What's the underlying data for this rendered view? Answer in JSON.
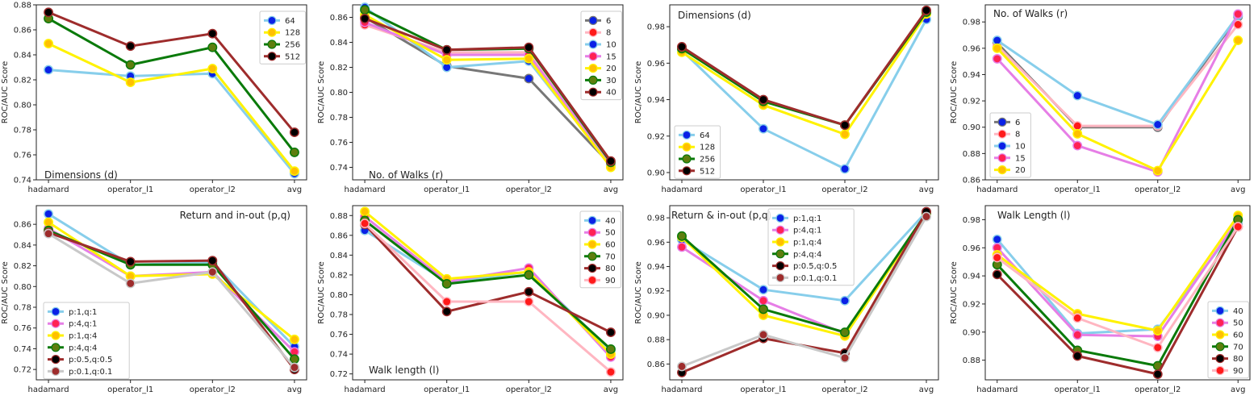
{
  "colors": {
    "blue_marker": "#0a21e6",
    "skyblue_line": "#87ceeb",
    "yellow_line": "#fff200",
    "gold_marker": "#ffc000",
    "green_line": "#0a7a0a",
    "olive_marker": "#5e7e0e",
    "brown_line": "#9e2c2c",
    "black_marker": "#000000",
    "gray_line": "#777777",
    "pink_line": "#ffb6c1",
    "red_marker": "#ff1a1a",
    "violet_line": "#e67ee6",
    "hotpink_marker": "#ff2255",
    "silver_line": "#c8c8c8"
  },
  "chart_data": [
    {
      "type": "line",
      "annotation": "Dimensions (d)",
      "ylabel": "ROC/AUC Score",
      "categories": [
        "hadamard",
        "operator_l1",
        "operator_l2",
        "avg"
      ],
      "ylim": [
        0.74,
        0.88
      ],
      "yticks": [
        "0.74",
        "0.76",
        "0.78",
        "0.80",
        "0.82",
        "0.84",
        "0.86",
        "0.88"
      ],
      "legend_position": "upper right",
      "series": [
        {
          "name": "64",
          "values": [
            0.828,
            0.823,
            0.825,
            0.745
          ],
          "line": "#87ceeb",
          "marker": "#0a21e6"
        },
        {
          "name": "128",
          "values": [
            0.849,
            0.818,
            0.829,
            0.747
          ],
          "line": "#fff200",
          "marker": "#ffc000"
        },
        {
          "name": "256",
          "values": [
            0.869,
            0.832,
            0.846,
            0.762
          ],
          "line": "#0a7a0a",
          "marker": "#5e7e0e"
        },
        {
          "name": "512",
          "values": [
            0.874,
            0.847,
            0.857,
            0.778
          ],
          "line": "#9e2c2c",
          "marker": "#000000"
        }
      ]
    },
    {
      "type": "line",
      "annotation": "No. of Walks (r)",
      "ylabel": "ROC/AUC Score",
      "categories": [
        "hadamard",
        "operator_l1",
        "operator_l2",
        "avg"
      ],
      "ylim": [
        0.73,
        0.87
      ],
      "yticks": [
        "0.74",
        "0.76",
        "0.78",
        "0.80",
        "0.82",
        "0.84",
        "0.86"
      ],
      "legend_position": "upper right",
      "series": [
        {
          "name": "6",
          "values": [
            0.86,
            0.821,
            0.811,
            0.742
          ],
          "line": "#777777",
          "marker": "#0a21e6"
        },
        {
          "name": "8",
          "values": [
            0.854,
            0.832,
            0.832,
            0.742
          ],
          "line": "#ffb6c1",
          "marker": "#ff1a1a"
        },
        {
          "name": "10",
          "values": [
            0.868,
            0.82,
            0.825,
            0.742
          ],
          "line": "#87ceeb",
          "marker": "#0a21e6"
        },
        {
          "name": "15",
          "values": [
            0.856,
            0.83,
            0.83,
            0.742
          ],
          "line": "#e67ee6",
          "marker": "#ff2255"
        },
        {
          "name": "20",
          "values": [
            0.862,
            0.826,
            0.827,
            0.74
          ],
          "line": "#fff200",
          "marker": "#ffc000"
        },
        {
          "name": "30",
          "values": [
            0.866,
            0.834,
            0.835,
            0.744
          ],
          "line": "#0a7a0a",
          "marker": "#5e7e0e"
        },
        {
          "name": "40",
          "values": [
            0.859,
            0.834,
            0.836,
            0.745
          ],
          "line": "#9e2c2c",
          "marker": "#000000"
        }
      ]
    },
    {
      "type": "line",
      "annotation": "Dimensions (d)",
      "ylabel": "ROC/AUC Score",
      "categories": [
        "hadamard",
        "operator_l1",
        "operator_l2",
        "avg"
      ],
      "ylim": [
        0.896,
        0.992
      ],
      "yticks": [
        "0.90",
        "0.92",
        "0.94",
        "0.96",
        "0.98"
      ],
      "legend_position": "lower left",
      "series": [
        {
          "name": "64",
          "values": [
            0.967,
            0.924,
            0.902,
            0.984
          ],
          "line": "#87ceeb",
          "marker": "#0a21e6"
        },
        {
          "name": "128",
          "values": [
            0.966,
            0.937,
            0.921,
            0.987
          ],
          "line": "#fff200",
          "marker": "#ffc000"
        },
        {
          "name": "256",
          "values": [
            0.968,
            0.939,
            0.926,
            0.988
          ],
          "line": "#0a7a0a",
          "marker": "#5e7e0e"
        },
        {
          "name": "512",
          "values": [
            0.969,
            0.94,
            0.926,
            0.989
          ],
          "line": "#9e2c2c",
          "marker": "#000000"
        }
      ]
    },
    {
      "type": "line",
      "annotation": "No. of Walks (r)",
      "ylabel": "ROC/AUC Score",
      "categories": [
        "hadamard",
        "operator_l1",
        "operator_l2",
        "avg"
      ],
      "ylim": [
        0.86,
        0.993
      ],
      "yticks": [
        "0.86",
        "0.88",
        "0.90",
        "0.92",
        "0.94",
        "0.96",
        "0.98"
      ],
      "legend_position": "center left",
      "series": [
        {
          "name": "6",
          "values": [
            0.964,
            0.9,
            0.9,
            0.984
          ],
          "line": "#777777",
          "marker": "#0a21e6"
        },
        {
          "name": "8",
          "values": [
            0.962,
            0.901,
            0.901,
            0.978
          ],
          "line": "#ffb6c1",
          "marker": "#ff1a1a"
        },
        {
          "name": "10",
          "values": [
            0.966,
            0.924,
            0.902,
            0.985
          ],
          "line": "#87ceeb",
          "marker": "#0a21e6"
        },
        {
          "name": "15",
          "values": [
            0.952,
            0.886,
            0.866,
            0.986
          ],
          "line": "#e67ee6",
          "marker": "#ff2255"
        },
        {
          "name": "20",
          "values": [
            0.96,
            0.895,
            0.867,
            0.966
          ],
          "line": "#fff200",
          "marker": "#ffc000"
        }
      ]
    },
    {
      "type": "line",
      "annotation": "Return and in-out (p,q)",
      "ylabel": "ROC/AUC Score",
      "categories": [
        "hadamard",
        "operator_l1",
        "operator_l2",
        "avg"
      ],
      "ylim": [
        0.71,
        0.878
      ],
      "yticks": [
        "0.72",
        "0.74",
        "0.76",
        "0.78",
        "0.80",
        "0.82",
        "0.84",
        "0.86"
      ],
      "legend_position": "lower left",
      "series": [
        {
          "name": "p:1,q:1",
          "values": [
            0.87,
            0.821,
            0.823,
            0.742
          ],
          "line": "#87ceeb",
          "marker": "#0a21e6"
        },
        {
          "name": "p:4,q:1",
          "values": [
            0.856,
            0.81,
            0.814,
            0.737
          ],
          "line": "#e67ee6",
          "marker": "#ff2255"
        },
        {
          "name": "p:1,q:4",
          "values": [
            0.862,
            0.81,
            0.812,
            0.749
          ],
          "line": "#fff200",
          "marker": "#ffc000"
        },
        {
          "name": "p:4,q:4",
          "values": [
            0.854,
            0.821,
            0.821,
            0.73
          ],
          "line": "#0a7a0a",
          "marker": "#5e7e0e"
        },
        {
          "name": "p:0.5,q:0.5",
          "values": [
            0.852,
            0.824,
            0.825,
            0.72
          ],
          "line": "#9e2c2c",
          "marker": "#000000"
        },
        {
          "name": "p:0.1,q:0.1",
          "values": [
            0.851,
            0.803,
            0.814,
            0.722
          ],
          "line": "#c8c8c8",
          "marker": "#9e2c2c"
        }
      ]
    },
    {
      "type": "line",
      "annotation": "Walk length (l)",
      "ylabel": "ROC/AUC Score",
      "categories": [
        "hadamard",
        "operator_l1",
        "operator_l2",
        "avg"
      ],
      "ylim": [
        0.714,
        0.89
      ],
      "yticks": [
        "0.72",
        "0.74",
        "0.76",
        "0.78",
        "0.80",
        "0.82",
        "0.84",
        "0.86",
        "0.88"
      ],
      "legend_position": "upper right",
      "series": [
        {
          "name": "40",
          "values": [
            0.865,
            0.813,
            0.823,
            0.744
          ],
          "line": "#87ceeb",
          "marker": "#0a21e6"
        },
        {
          "name": "50",
          "values": [
            0.879,
            0.813,
            0.827,
            0.737
          ],
          "line": "#e67ee6",
          "marker": "#ff2255"
        },
        {
          "name": "60",
          "values": [
            0.884,
            0.816,
            0.823,
            0.74
          ],
          "line": "#fff200",
          "marker": "#ffc000"
        },
        {
          "name": "70",
          "values": [
            0.875,
            0.811,
            0.82,
            0.745
          ],
          "line": "#0a7a0a",
          "marker": "#5e7e0e"
        },
        {
          "name": "80",
          "values": [
            0.871,
            0.783,
            0.803,
            0.762
          ],
          "line": "#9e2c2c",
          "marker": "#000000"
        },
        {
          "name": "90",
          "values": [
            0.872,
            0.793,
            0.793,
            0.722
          ],
          "line": "#ffb6c1",
          "marker": "#ff1a1a"
        }
      ]
    },
    {
      "type": "line",
      "annotation": "Return & in-out (p,q)",
      "ylabel": "ROC/AUC Score",
      "categories": [
        "hadamard",
        "operator_l1",
        "operator_l2",
        "avg"
      ],
      "ylim": [
        0.847,
        0.99
      ],
      "yticks": [
        "0.86",
        "0.88",
        "0.90",
        "0.92",
        "0.94",
        "0.96",
        "0.98"
      ],
      "legend_position": "upper center",
      "series": [
        {
          "name": "p:1,q:1",
          "values": [
            0.962,
            0.921,
            0.912,
            0.985
          ],
          "line": "#87ceeb",
          "marker": "#0a21e6"
        },
        {
          "name": "p:4,q:1",
          "values": [
            0.956,
            0.912,
            0.885,
            0.983
          ],
          "line": "#e67ee6",
          "marker": "#ff2255"
        },
        {
          "name": "p:1,q:4",
          "values": [
            0.964,
            0.9,
            0.883,
            0.983
          ],
          "line": "#fff200",
          "marker": "#ffc000"
        },
        {
          "name": "p:4,q:4",
          "values": [
            0.965,
            0.905,
            0.886,
            0.984
          ],
          "line": "#0a7a0a",
          "marker": "#5e7e0e"
        },
        {
          "name": "p:0.5,q:0.5",
          "values": [
            0.853,
            0.881,
            0.869,
            0.985
          ],
          "line": "#9e2c2c",
          "marker": "#000000"
        },
        {
          "name": "p:0.1,q:0.1",
          "values": [
            0.858,
            0.884,
            0.865,
            0.981
          ],
          "line": "#c8c8c8",
          "marker": "#9e2c2c"
        }
      ]
    },
    {
      "type": "line",
      "annotation": "Walk Length (l)",
      "ylabel": "ROC/AUC Score",
      "categories": [
        "hadamard",
        "operator_l1",
        "operator_l2",
        "avg"
      ],
      "ylim": [
        0.866,
        0.99
      ],
      "yticks": [
        "0.88",
        "0.90",
        "0.92",
        "0.94",
        "0.96",
        "0.98"
      ],
      "legend_position": "lower right",
      "series": [
        {
          "name": "40",
          "values": [
            0.966,
            0.899,
            0.902,
            0.977
          ],
          "line": "#87ceeb",
          "marker": "#0a21e6"
        },
        {
          "name": "50",
          "values": [
            0.96,
            0.898,
            0.897,
            0.98
          ],
          "line": "#e67ee6",
          "marker": "#ff2255"
        },
        {
          "name": "60",
          "values": [
            0.955,
            0.913,
            0.901,
            0.983
          ],
          "line": "#fff200",
          "marker": "#ffc000"
        },
        {
          "name": "70",
          "values": [
            0.948,
            0.887,
            0.876,
            0.98
          ],
          "line": "#0a7a0a",
          "marker": "#5e7e0e"
        },
        {
          "name": "80",
          "values": [
            0.941,
            0.883,
            0.87,
            0.975
          ],
          "line": "#9e2c2c",
          "marker": "#000000"
        },
        {
          "name": "90",
          "values": [
            0.953,
            0.91,
            0.889,
            0.975
          ],
          "line": "#ffb6c1",
          "marker": "#ff1a1a"
        }
      ]
    }
  ]
}
